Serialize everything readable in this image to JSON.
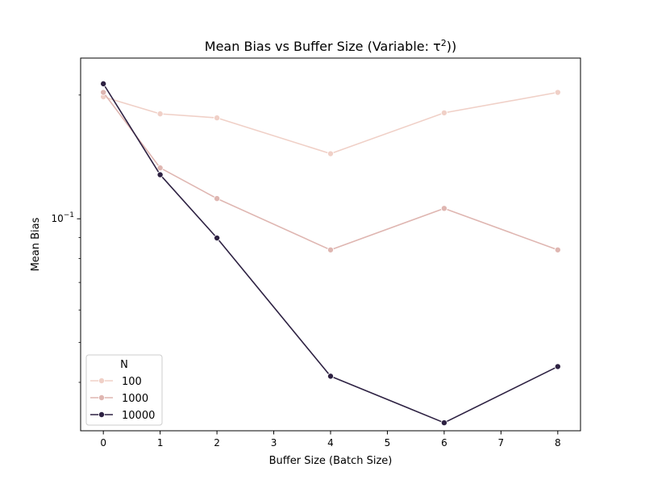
{
  "chart_data": {
    "type": "line",
    "title": "Mean Bias vs Buffer Size (Variable: τ²))",
    "title_parts": {
      "prefix": "Mean Bias vs Buffer Size (Variable: τ",
      "superscript": "2",
      "suffix": "))"
    },
    "xlabel": "Buffer Size (Batch Size)",
    "ylabel": "Mean Bias",
    "x_scale": "linear",
    "y_scale": "log",
    "xlim": [
      -0.4,
      8.4
    ],
    "ylim": [
      0.0305,
      0.246
    ],
    "x_ticks": [
      0,
      1,
      2,
      3,
      4,
      5,
      6,
      7,
      8
    ],
    "x_tick_labels": [
      "0",
      "1",
      "2",
      "3",
      "4",
      "5",
      "6",
      "7",
      "8"
    ],
    "y_major_ticks": [
      0.1
    ],
    "y_major_tick_labels": [
      {
        "base": "10",
        "exponent": "−1"
      }
    ],
    "y_minor_ticks": [
      0.04,
      0.05,
      0.06,
      0.07,
      0.08,
      0.09,
      0.2
    ],
    "grid": false,
    "legend": {
      "title": "N",
      "position": "lower-left"
    },
    "series": [
      {
        "name": "100",
        "color": "#f0d0c7",
        "x": [
          0,
          1,
          2,
          4,
          6,
          8
        ],
        "y": [
          0.198,
          0.18,
          0.176,
          0.144,
          0.181,
          0.203
        ]
      },
      {
        "name": "1000",
        "color": "#dfb6b1",
        "x": [
          0,
          1,
          2,
          4,
          6,
          8
        ],
        "y": [
          0.203,
          0.133,
          0.112,
          0.084,
          0.106,
          0.084
        ]
      },
      {
        "name": "10000",
        "color": "#2d2142",
        "x": [
          0,
          1,
          2,
          4,
          6,
          8
        ],
        "y": [
          0.213,
          0.128,
          0.0898,
          0.0414,
          0.0319,
          0.0437
        ]
      }
    ]
  }
}
